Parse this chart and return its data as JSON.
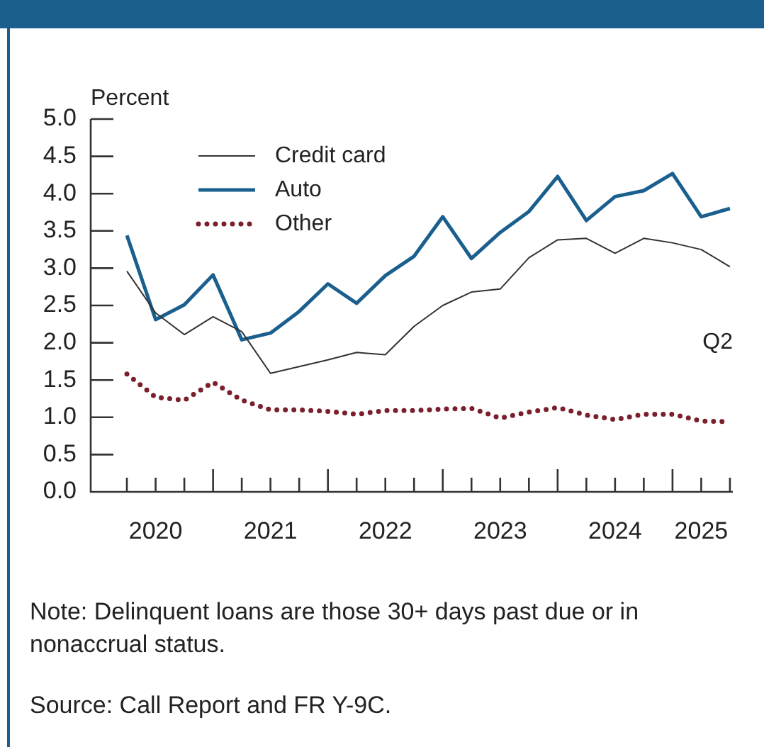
{
  "chart_data": {
    "type": "line",
    "ylabel": "Percent",
    "categories": [
      null,
      "2020",
      null,
      null,
      null,
      "2021",
      null,
      null,
      null,
      "2022",
      null,
      null,
      null,
      "2023",
      null,
      null,
      null,
      "2024",
      null,
      null,
      "2025",
      null
    ],
    "series": [
      {
        "name": "Credit card",
        "color": "#333333",
        "line_style": "solid",
        "values": [
          2.96,
          2.4,
          2.11,
          2.35,
          2.15,
          1.59,
          1.68,
          1.77,
          1.87,
          1.84,
          2.22,
          2.5,
          2.68,
          2.72,
          3.14,
          3.38,
          3.4,
          3.2,
          3.4,
          3.34,
          3.25,
          3.02
        ]
      },
      {
        "name": "Auto",
        "color": "#1a5f8e",
        "line_style": "solid",
        "values": [
          3.44,
          2.31,
          2.51,
          2.91,
          2.04,
          2.13,
          2.42,
          2.79,
          2.53,
          2.9,
          3.16,
          3.69,
          3.13,
          3.48,
          3.76,
          4.23,
          3.64,
          3.96,
          4.04,
          4.27,
          3.69,
          3.8
        ]
      },
      {
        "name": "Other",
        "color": "#7a1f2b",
        "line_style": "dotted",
        "values": [
          1.58,
          1.27,
          1.23,
          1.47,
          1.23,
          1.1,
          1.1,
          1.08,
          1.04,
          1.09,
          1.09,
          1.11,
          1.12,
          0.99,
          1.07,
          1.13,
          1.03,
          0.97,
          1.04,
          1.04,
          0.95,
          0.94
        ]
      }
    ],
    "ylim": [
      0,
      5
    ],
    "yticks": [
      {
        "value": 0,
        "label": "0.0"
      },
      {
        "value": 0.5,
        "label": "0.5"
      },
      {
        "value": 1,
        "label": "1.0"
      },
      {
        "value": 1.5,
        "label": "1.5"
      },
      {
        "value": 2,
        "label": "2.0"
      },
      {
        "value": 2.5,
        "label": "2.5"
      },
      {
        "value": 3,
        "label": "3.0"
      },
      {
        "value": 3.5,
        "label": "3.5"
      },
      {
        "value": 4,
        "label": "4.0"
      },
      {
        "value": 4.5,
        "label": "4.5"
      },
      {
        "value": 5,
        "label": "5.0"
      }
    ],
    "grid": false,
    "legend": "top left",
    "marker": "none",
    "annotations": [
      "Q2",
      "Note: Delinquent loans are those 30+ days past due or in nonaccrual status.",
      "Source: Call Report and FR Y-9C."
    ]
  }
}
